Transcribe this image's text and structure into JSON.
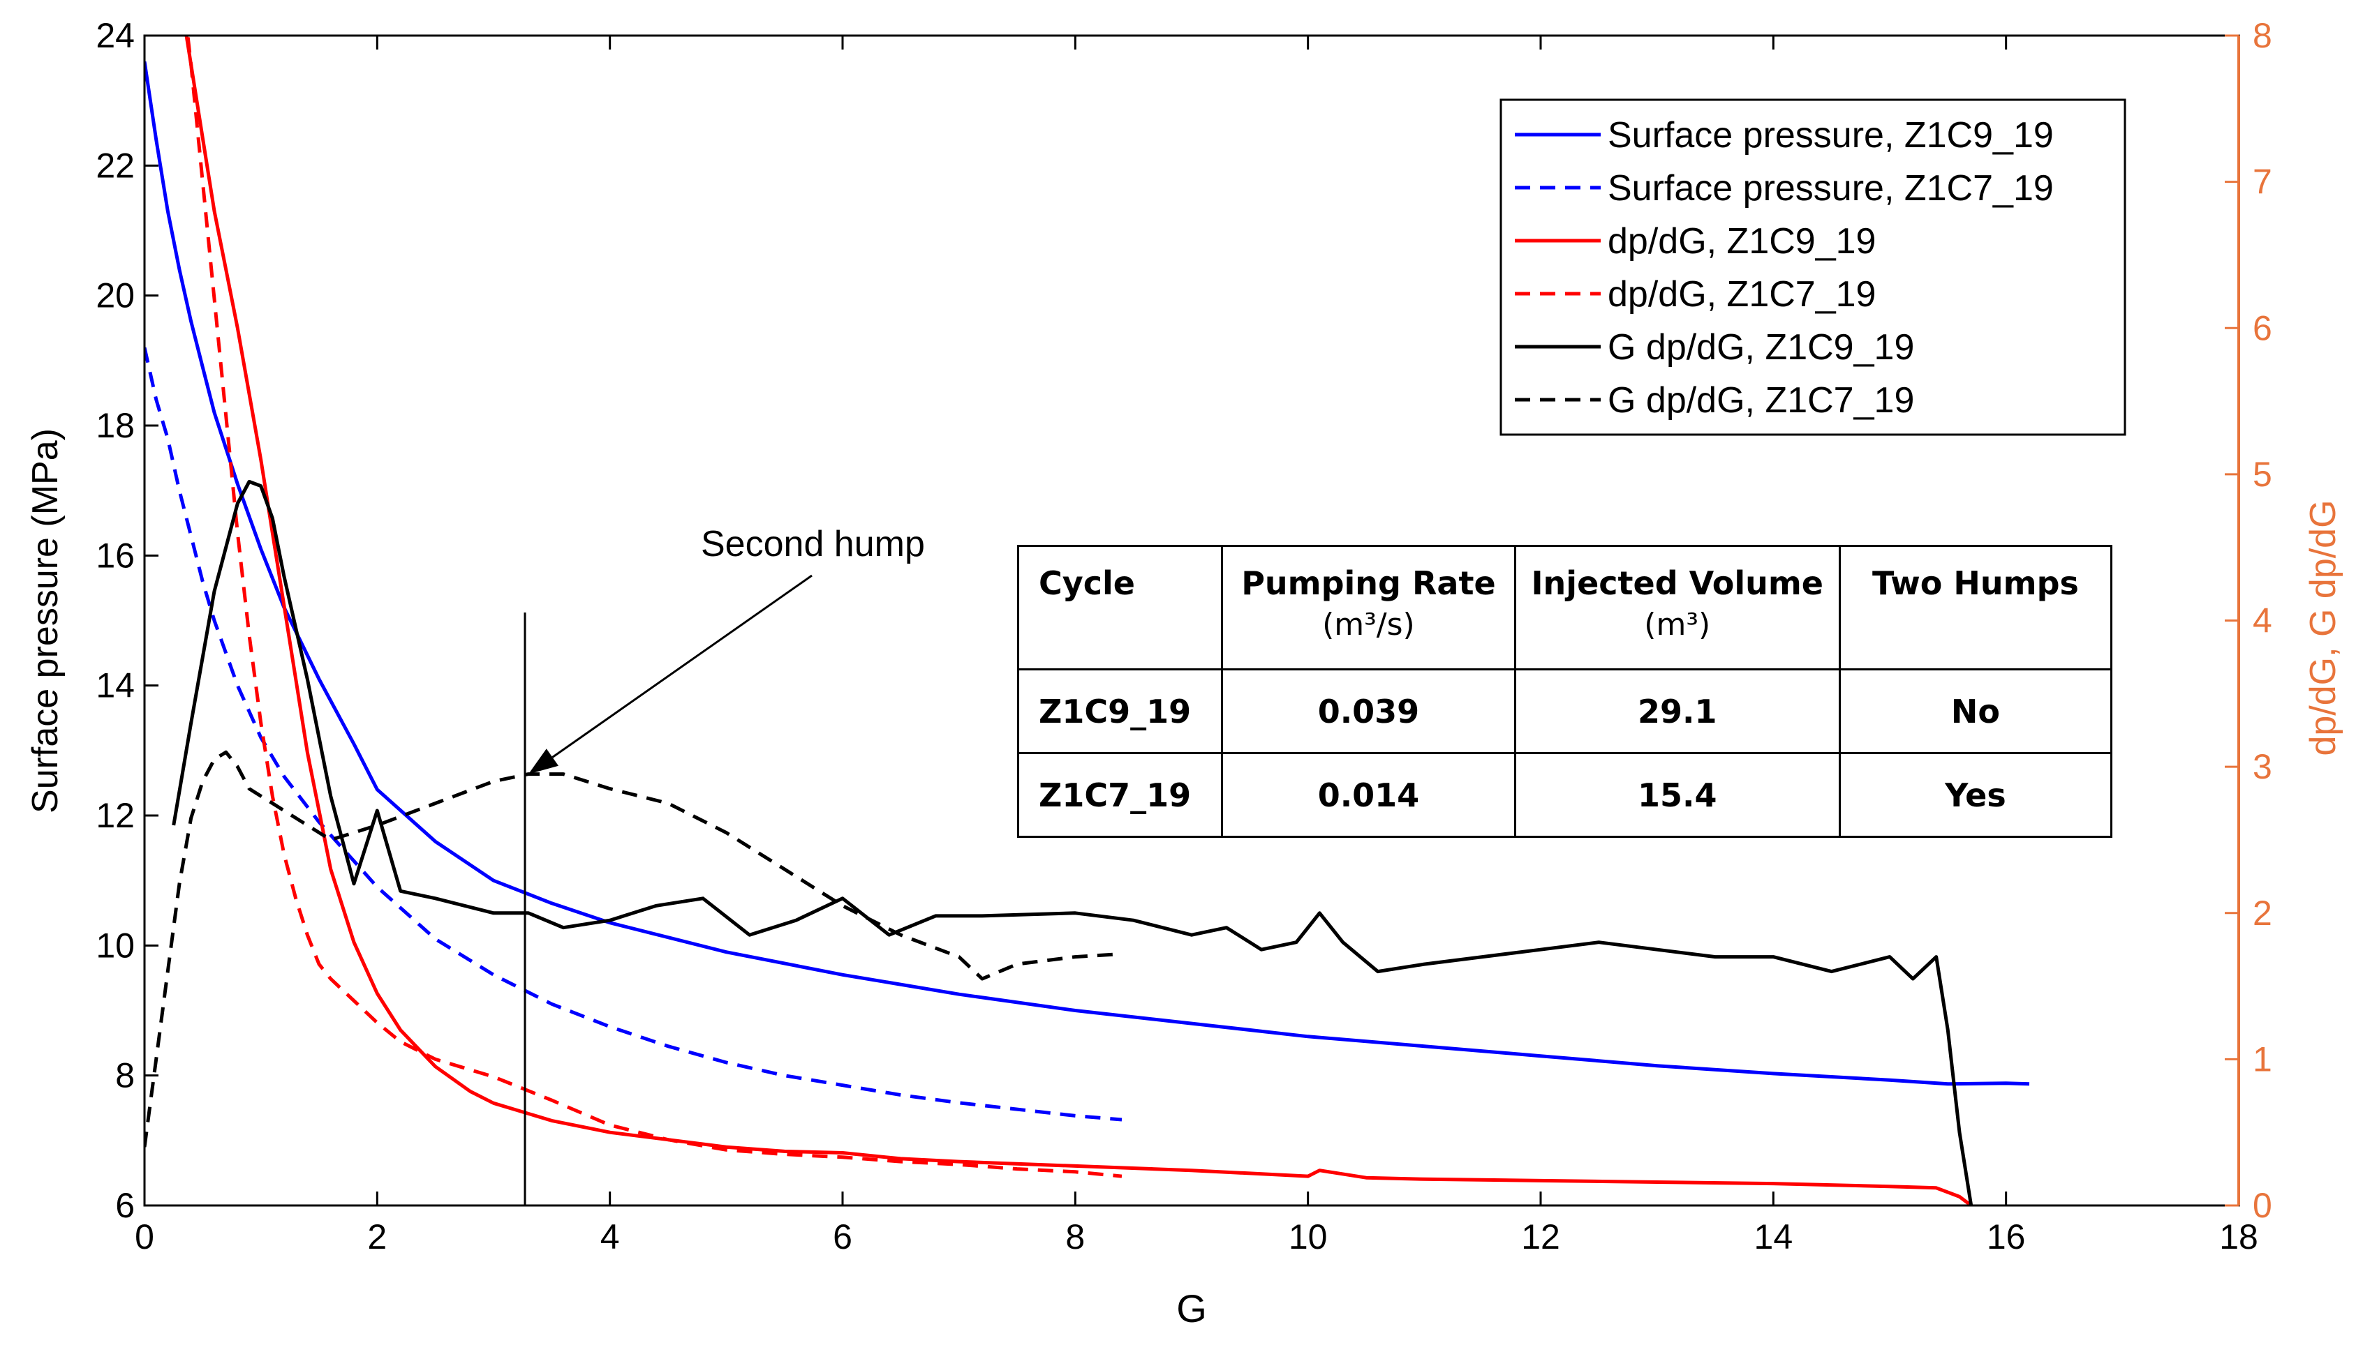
{
  "chart_data": {
    "type": "line",
    "xlabel": "G",
    "ylabel_left": "Surface pressure (MPa)",
    "ylabel_right": "dp/dG, G dp/dG",
    "xlim": [
      0,
      18
    ],
    "ylim_left": [
      6,
      24
    ],
    "ylim_right": [
      0,
      8
    ],
    "xticks": [
      0,
      2,
      4,
      6,
      8,
      10,
      12,
      14,
      16,
      18
    ],
    "yticks_left": [
      6,
      8,
      10,
      12,
      14,
      16,
      18,
      20,
      22,
      24
    ],
    "yticks_right": [
      0,
      1,
      2,
      3,
      4,
      5,
      6,
      7,
      8
    ],
    "legend_position": "top-right",
    "series": [
      {
        "name": "Surface pressure, Z1C9_19",
        "axis": "left",
        "color": "#0000ff",
        "dash": "solid",
        "x": [
          0.0,
          0.1,
          0.2,
          0.3,
          0.4,
          0.5,
          0.6,
          0.8,
          1.0,
          1.2,
          1.5,
          1.8,
          2.0,
          2.5,
          3.0,
          3.5,
          4.0,
          5.0,
          6.0,
          7.0,
          8.0,
          9.0,
          10.0,
          11.0,
          12.0,
          13.0,
          14.0,
          15.0,
          15.5,
          16.0,
          16.2
        ],
        "y": [
          23.6,
          22.4,
          21.3,
          20.4,
          19.6,
          18.9,
          18.2,
          17.1,
          16.1,
          15.2,
          14.1,
          13.1,
          12.4,
          11.6,
          11.0,
          10.65,
          10.35,
          9.9,
          9.55,
          9.25,
          9.0,
          8.8,
          8.6,
          8.45,
          8.3,
          8.15,
          8.03,
          7.93,
          7.87,
          7.88,
          7.87
        ]
      },
      {
        "name": "Surface pressure, Z1C7_19",
        "axis": "left",
        "color": "#0000ff",
        "dash": "dashed",
        "x": [
          0.0,
          0.1,
          0.2,
          0.3,
          0.4,
          0.5,
          0.6,
          0.8,
          1.0,
          1.2,
          1.5,
          1.8,
          2.0,
          2.5,
          3.0,
          3.5,
          4.0,
          4.5,
          5.0,
          5.5,
          6.0,
          6.5,
          7.0,
          7.5,
          8.0,
          8.4
        ],
        "y": [
          19.2,
          18.4,
          17.8,
          17.0,
          16.3,
          15.6,
          15.0,
          14.0,
          13.2,
          12.6,
          11.9,
          11.3,
          10.9,
          10.1,
          9.55,
          9.1,
          8.75,
          8.45,
          8.2,
          8.0,
          7.85,
          7.7,
          7.58,
          7.48,
          7.38,
          7.32
        ]
      },
      {
        "name": "dp/dG, Z1C9_19",
        "axis": "right",
        "color": "#ff0000",
        "dash": "solid",
        "x": [
          0.3,
          0.4,
          0.5,
          0.6,
          0.7,
          0.8,
          0.9,
          1.0,
          1.1,
          1.2,
          1.3,
          1.4,
          1.5,
          1.6,
          1.8,
          2.0,
          2.2,
          2.5,
          2.8,
          3.0,
          3.5,
          4.0,
          4.5,
          5.0,
          5.5,
          6.0,
          6.5,
          7.0,
          8.0,
          9.0,
          9.5,
          10.0,
          10.1,
          10.5,
          11.0,
          12.0,
          13.0,
          14.0,
          15.0,
          15.4,
          15.6,
          15.7
        ],
        "y": [
          8.3,
          7.8,
          7.3,
          6.8,
          6.4,
          6.0,
          5.55,
          5.1,
          4.6,
          4.1,
          3.6,
          3.1,
          2.7,
          2.3,
          1.8,
          1.45,
          1.2,
          0.95,
          0.78,
          0.7,
          0.58,
          0.5,
          0.45,
          0.4,
          0.37,
          0.36,
          0.32,
          0.3,
          0.27,
          0.24,
          0.22,
          0.2,
          0.24,
          0.19,
          0.18,
          0.17,
          0.16,
          0.15,
          0.13,
          0.12,
          0.06,
          0.0
        ]
      },
      {
        "name": "dp/dG, Z1C7_19",
        "axis": "right",
        "color": "#ff0000",
        "dash": "dashed",
        "x": [
          0.3,
          0.4,
          0.5,
          0.6,
          0.7,
          0.8,
          0.9,
          1.0,
          1.1,
          1.2,
          1.3,
          1.4,
          1.5,
          1.6,
          1.8,
          2.0,
          2.2,
          2.5,
          3.0,
          3.5,
          4.0,
          4.5,
          5.0,
          5.5,
          6.0,
          6.5,
          7.0,
          7.5,
          8.0,
          8.4
        ],
        "y": [
          8.5,
          7.8,
          7.0,
          6.2,
          5.4,
          4.6,
          3.9,
          3.3,
          2.8,
          2.4,
          2.1,
          1.85,
          1.65,
          1.55,
          1.4,
          1.25,
          1.12,
          1.0,
          0.88,
          0.72,
          0.55,
          0.45,
          0.38,
          0.35,
          0.33,
          0.3,
          0.28,
          0.25,
          0.23,
          0.2
        ]
      },
      {
        "name": "G dp/dG, Z1C9_19",
        "axis": "right",
        "color": "#000000",
        "dash": "solid",
        "x": [
          0.25,
          0.4,
          0.6,
          0.8,
          0.9,
          1.0,
          1.1,
          1.2,
          1.4,
          1.6,
          1.8,
          2.0,
          2.2,
          2.5,
          3.0,
          3.3,
          3.6,
          4.0,
          4.4,
          4.8,
          5.2,
          5.6,
          6.0,
          6.4,
          6.8,
          7.2,
          8.0,
          8.5,
          9.0,
          9.3,
          9.6,
          9.9,
          10.1,
          10.3,
          10.6,
          11.0,
          11.5,
          12.0,
          12.5,
          13.0,
          13.5,
          14.0,
          14.5,
          15.0,
          15.2,
          15.4,
          15.5,
          15.6,
          15.7
        ],
        "y": [
          2.6,
          3.3,
          4.2,
          4.8,
          4.95,
          4.92,
          4.7,
          4.3,
          3.6,
          2.8,
          2.2,
          2.7,
          2.15,
          2.1,
          2.0,
          2.0,
          1.9,
          1.95,
          2.05,
          2.1,
          1.85,
          1.95,
          2.1,
          1.85,
          1.98,
          1.98,
          2.0,
          1.95,
          1.85,
          1.9,
          1.75,
          1.8,
          2.0,
          1.8,
          1.6,
          1.65,
          1.7,
          1.75,
          1.8,
          1.75,
          1.7,
          1.7,
          1.6,
          1.7,
          1.55,
          1.7,
          1.2,
          0.5,
          0.0
        ]
      },
      {
        "name": "G dp/dG, Z1C7_19",
        "axis": "right",
        "color": "#000000",
        "dash": "dashed",
        "x": [
          0.0,
          0.1,
          0.2,
          0.3,
          0.4,
          0.5,
          0.6,
          0.7,
          0.8,
          0.9,
          1.0,
          1.2,
          1.4,
          1.6,
          1.8,
          2.0,
          2.5,
          3.0,
          3.3,
          3.6,
          4.0,
          4.5,
          5.0,
          5.5,
          6.0,
          6.5,
          7.0,
          7.2,
          7.5,
          8.0,
          8.4
        ],
        "y": [
          0.4,
          1.0,
          1.6,
          2.2,
          2.65,
          2.9,
          3.05,
          3.1,
          3.0,
          2.85,
          2.8,
          2.7,
          2.6,
          2.5,
          2.55,
          2.6,
          2.75,
          2.9,
          2.95,
          2.95,
          2.85,
          2.75,
          2.55,
          2.3,
          2.05,
          1.85,
          1.7,
          1.55,
          1.65,
          1.7,
          1.72
        ]
      }
    ],
    "annotation": {
      "text": "Second hump",
      "arrow_to_x": 3.3,
      "arrow_to_y_right": 2.95
    },
    "vertical_line_x": 3.27,
    "table": {
      "headers": [
        {
          "title": "Cycle",
          "unit": ""
        },
        {
          "title": "Pumping Rate",
          "unit": "(m³/s)"
        },
        {
          "title": "Injected Volume",
          "unit": "(m³)"
        },
        {
          "title": "Two Humps",
          "unit": ""
        }
      ],
      "rows": [
        [
          "Z1C9_19",
          "0.039",
          "29.1",
          "No"
        ],
        [
          "Z1C7_19",
          "0.014",
          "15.4",
          "Yes"
        ]
      ]
    },
    "colors": {
      "left_axis": "#000000",
      "right_axis": "#e8743b",
      "blue": "#0000ff",
      "red": "#ff0000",
      "black": "#000000"
    }
  }
}
